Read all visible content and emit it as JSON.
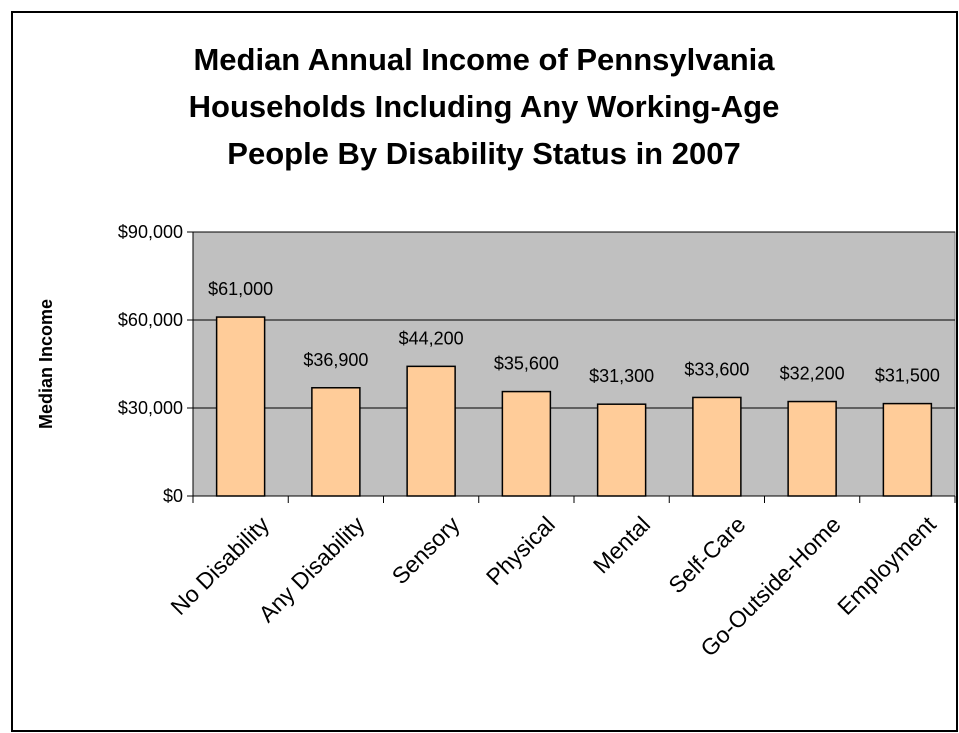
{
  "chart_data": {
    "type": "bar",
    "title_lines": [
      "Median Annual Income of Pennsylvania",
      "Households Including Any Working-Age",
      "People By Disability Status in 2007"
    ],
    "ylabel": "Median Income",
    "xlabel": "",
    "categories": [
      "No Disability",
      "Any Disability",
      "Sensory",
      "Physical",
      "Mental",
      "Self-Care",
      "Go-Outside-Home",
      "Employment"
    ],
    "values": [
      61000,
      36900,
      44200,
      35600,
      31300,
      33600,
      32200,
      31500
    ],
    "data_labels": [
      "$61,000",
      "$36,900",
      "$44,200",
      "$35,600",
      "$31,300",
      "$33,600",
      "$32,200",
      "$31,500"
    ],
    "ylim": [
      0,
      90000
    ],
    "yticks": [
      0,
      30000,
      60000,
      90000
    ],
    "ytick_labels": [
      "$0",
      "$30,000",
      "$60,000",
      "$90,000"
    ],
    "grid": true,
    "legend": "none",
    "colors": {
      "bar_fill": "#FFCC99",
      "bar_stroke": "#000000",
      "plot_background": "#C0C0C0",
      "page_background": "#FFFFFF"
    }
  }
}
